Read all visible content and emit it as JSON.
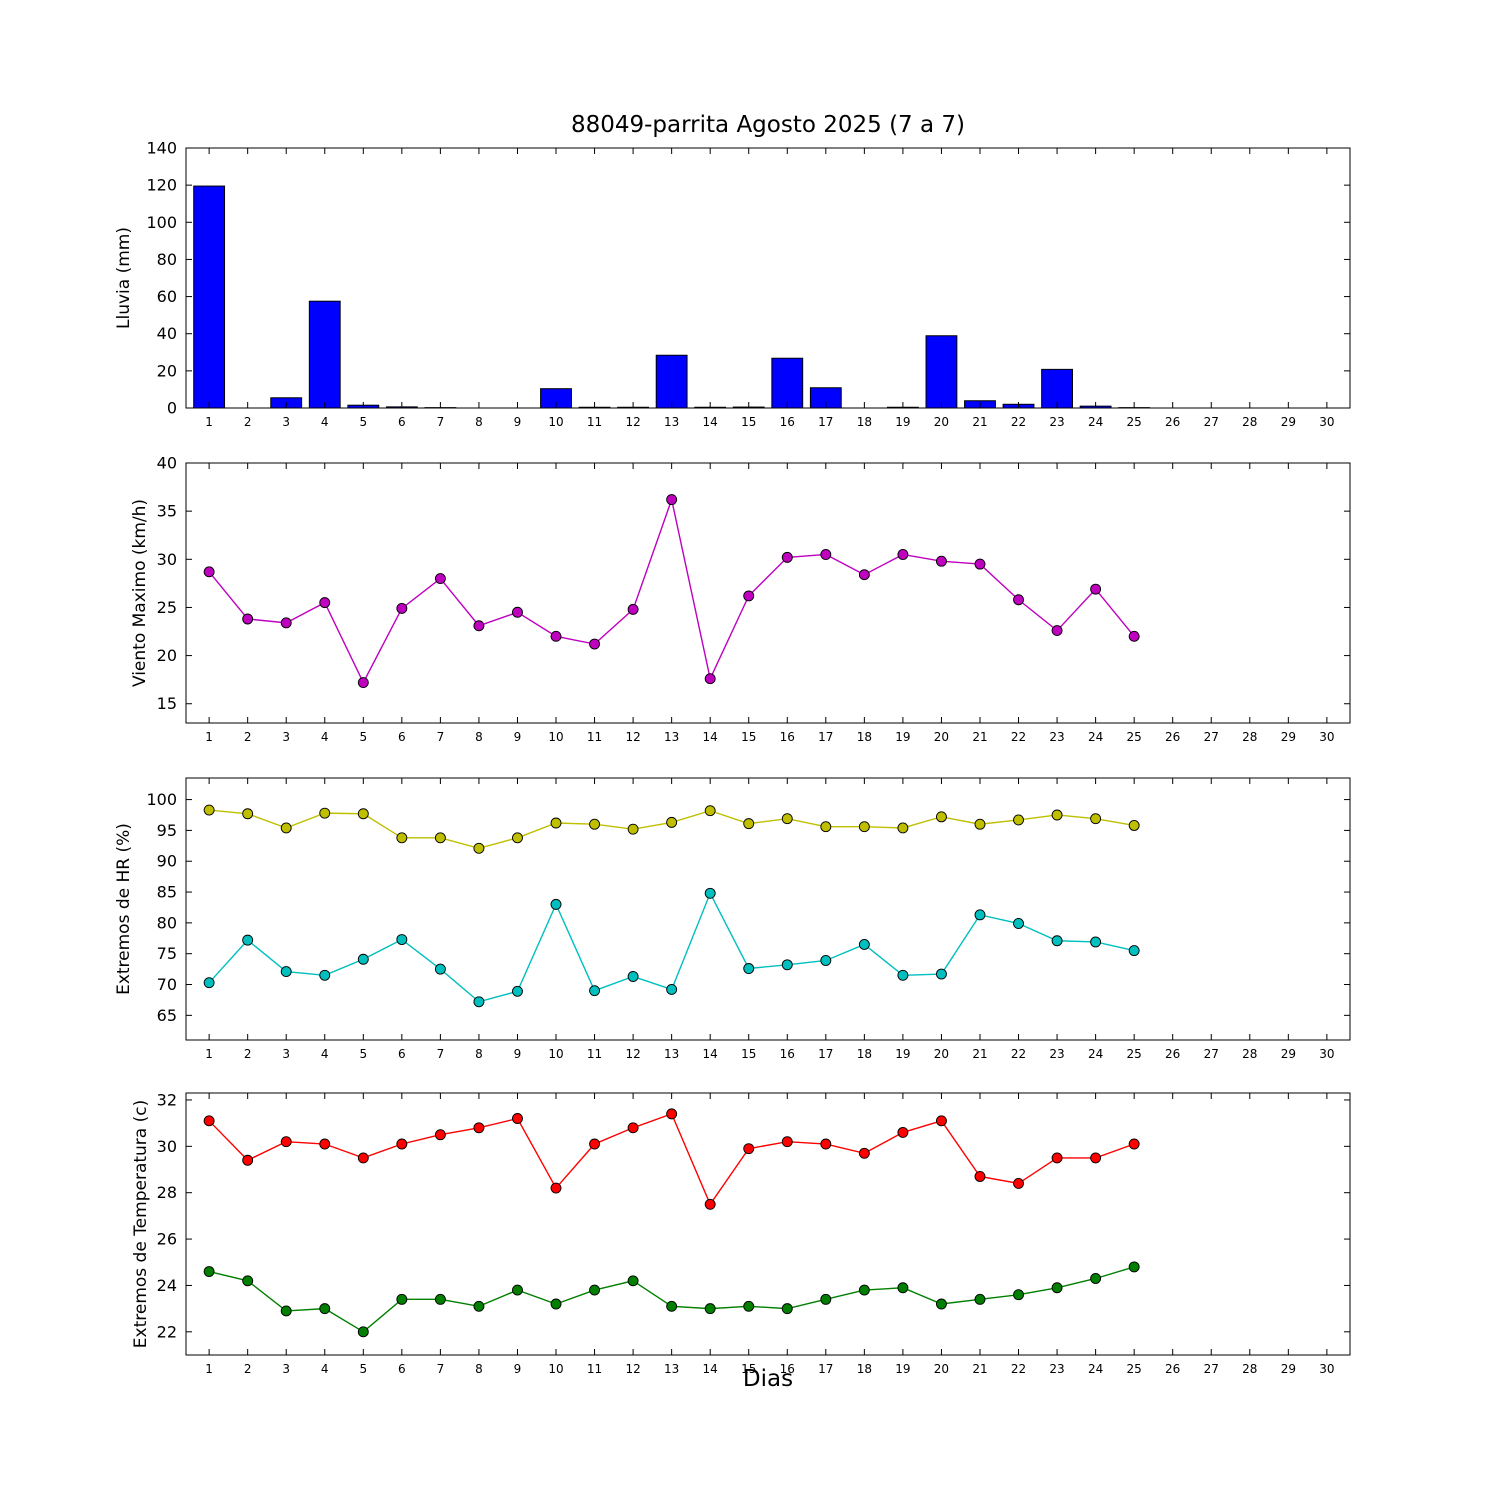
{
  "figure": {
    "title": "88049-parrita Agosto 2025  (7 a 7)",
    "xlabel": "Dias"
  },
  "chart_data": [
    {
      "type": "bar",
      "name": "lluvia-bar-chart",
      "title": "88049-parrita Agosto 2025  (7 a 7)",
      "ylabel": "Lluvia (mm)",
      "x": [
        1,
        2,
        3,
        4,
        5,
        6,
        7,
        8,
        9,
        10,
        11,
        12,
        13,
        14,
        15,
        16,
        17,
        18,
        19,
        20,
        21,
        22,
        23,
        24,
        25,
        26,
        27,
        28,
        29,
        30
      ],
      "values": [
        119.5,
        0,
        5.5,
        57.5,
        1.5,
        0.6,
        0.2,
        0,
        0,
        10.4,
        0.4,
        0.4,
        28.4,
        0.4,
        0.5,
        26.8,
        10.9,
        0,
        0.4,
        38.9,
        3.9,
        2.0,
        20.8,
        1.0,
        0.2,
        0,
        0,
        0,
        0,
        0
      ],
      "bar_color": "#0000ff",
      "bar_width": 0.8,
      "ylim": [
        0,
        140
      ],
      "yticks": [
        0,
        20,
        40,
        60,
        80,
        100,
        120,
        140
      ],
      "xlim": [
        0.4,
        30.6
      ],
      "xticks": [
        1,
        2,
        3,
        4,
        5,
        6,
        7,
        8,
        9,
        10,
        11,
        12,
        13,
        14,
        15,
        16,
        17,
        18,
        19,
        20,
        21,
        22,
        23,
        24,
        25,
        26,
        27,
        28,
        29,
        30
      ]
    },
    {
      "type": "line",
      "name": "viento-line-chart",
      "ylabel": "Viento Maximo (km/h)",
      "x": [
        1,
        2,
        3,
        4,
        5,
        6,
        7,
        8,
        9,
        10,
        11,
        12,
        13,
        14,
        15,
        16,
        17,
        18,
        19,
        20,
        21,
        22,
        23,
        24,
        25
      ],
      "series": [
        {
          "name": "viento-maximo",
          "color": "#bf00bf",
          "values": [
            28.7,
            23.8,
            23.4,
            25.5,
            17.2,
            24.9,
            28.0,
            23.1,
            24.5,
            22.0,
            21.2,
            24.8,
            36.2,
            17.6,
            26.2,
            30.2,
            30.5,
            28.4,
            30.5,
            29.8,
            29.5,
            25.8,
            22.6,
            26.9,
            22.0
          ]
        }
      ],
      "ylim": [
        13,
        40
      ],
      "yticks": [
        15,
        20,
        25,
        30,
        35,
        40
      ],
      "xlim": [
        0.4,
        30.6
      ],
      "xticks": [
        1,
        2,
        3,
        4,
        5,
        6,
        7,
        8,
        9,
        10,
        11,
        12,
        13,
        14,
        15,
        16,
        17,
        18,
        19,
        20,
        21,
        22,
        23,
        24,
        25,
        26,
        27,
        28,
        29,
        30
      ]
    },
    {
      "type": "line",
      "name": "hr-extremos-line-chart",
      "ylabel": "Extremos de HR (%)",
      "x": [
        1,
        2,
        3,
        4,
        5,
        6,
        7,
        8,
        9,
        10,
        11,
        12,
        13,
        14,
        15,
        16,
        17,
        18,
        19,
        20,
        21,
        22,
        23,
        24,
        25
      ],
      "series": [
        {
          "name": "hr-maxima",
          "color": "#bfbf00",
          "values": [
            98.3,
            97.7,
            95.4,
            97.8,
            97.7,
            93.8,
            93.8,
            92.1,
            93.8,
            96.2,
            96.0,
            95.2,
            96.3,
            98.2,
            96.1,
            96.9,
            95.6,
            95.6,
            95.4,
            97.2,
            96.0,
            96.7,
            97.5,
            96.9,
            95.8
          ]
        },
        {
          "name": "hr-minima",
          "color": "#00bfbf",
          "values": [
            70.3,
            77.2,
            72.1,
            71.5,
            74.1,
            77.3,
            72.5,
            67.2,
            68.9,
            83.0,
            69.0,
            71.3,
            69.2,
            84.8,
            72.6,
            73.2,
            73.9,
            76.5,
            71.5,
            71.7,
            81.3,
            79.9,
            77.1,
            76.9,
            75.5
          ]
        }
      ],
      "ylim": [
        61,
        103.5
      ],
      "yticks": [
        65,
        70,
        75,
        80,
        85,
        90,
        95,
        100
      ],
      "xlim": [
        0.4,
        30.6
      ],
      "xticks": [
        1,
        2,
        3,
        4,
        5,
        6,
        7,
        8,
        9,
        10,
        11,
        12,
        13,
        14,
        15,
        16,
        17,
        18,
        19,
        20,
        21,
        22,
        23,
        24,
        25,
        26,
        27,
        28,
        29,
        30
      ]
    },
    {
      "type": "line",
      "name": "temperatura-extremos-line-chart",
      "ylabel": "Extremos de Temperatura (c)",
      "xlabel": "Dias",
      "x": [
        1,
        2,
        3,
        4,
        5,
        6,
        7,
        8,
        9,
        10,
        11,
        12,
        13,
        14,
        15,
        16,
        17,
        18,
        19,
        20,
        21,
        22,
        23,
        24,
        25
      ],
      "series": [
        {
          "name": "temperatura-maxima",
          "color": "#ff0000",
          "values": [
            31.1,
            29.4,
            30.2,
            30.1,
            29.5,
            30.1,
            30.5,
            30.8,
            31.2,
            28.2,
            30.1,
            30.8,
            31.4,
            27.5,
            29.9,
            30.2,
            30.1,
            29.7,
            30.6,
            31.1,
            28.7,
            28.4,
            29.5,
            29.5,
            30.1
          ]
        },
        {
          "name": "temperatura-minima",
          "color": "#007f00",
          "values": [
            24.6,
            24.2,
            22.9,
            23.0,
            22.0,
            23.4,
            23.4,
            23.1,
            23.8,
            23.2,
            23.8,
            24.2,
            23.1,
            23.0,
            23.1,
            23.0,
            23.4,
            23.8,
            23.9,
            23.2,
            23.4,
            23.6,
            23.9,
            24.3,
            24.8
          ]
        }
      ],
      "ylim": [
        21,
        32.3
      ],
      "yticks": [
        22,
        24,
        26,
        28,
        30,
        32
      ],
      "xlim": [
        0.4,
        30.6
      ],
      "xticks": [
        1,
        2,
        3,
        4,
        5,
        6,
        7,
        8,
        9,
        10,
        11,
        12,
        13,
        14,
        15,
        16,
        17,
        18,
        19,
        20,
        21,
        22,
        23,
        24,
        25,
        26,
        27,
        28,
        29,
        30
      ]
    }
  ]
}
